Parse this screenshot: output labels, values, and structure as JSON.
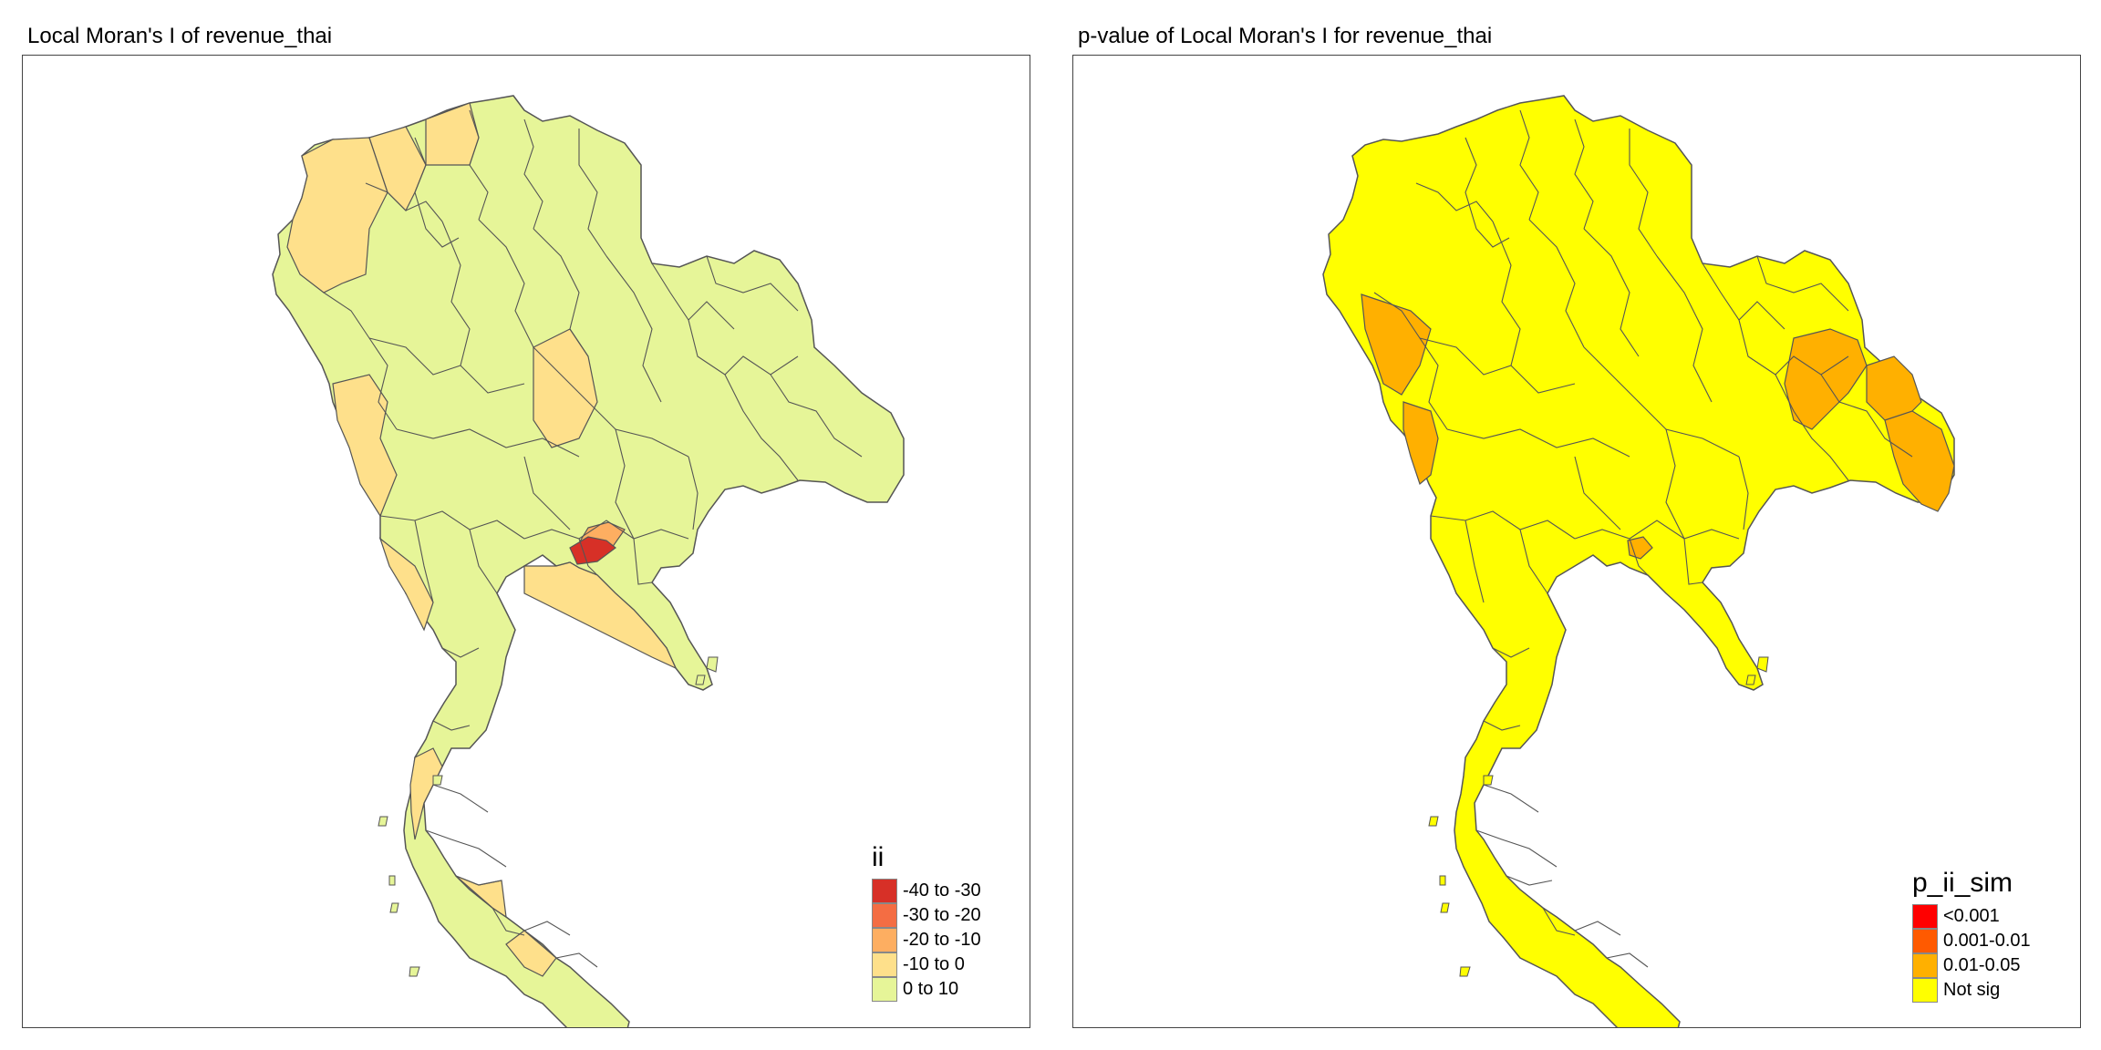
{
  "left_panel": {
    "title": "Local Moran's I of revenue_thai",
    "legend": {
      "title": "ii",
      "items": [
        {
          "label": "-40 to -30",
          "color": "#d73027"
        },
        {
          "label": "-30 to -20",
          "color": "#f46d43"
        },
        {
          "label": "-20 to -10",
          "color": "#fdae61"
        },
        {
          "label": "-10 to 0",
          "color": "#fee08b"
        },
        {
          "label": "0 to 10",
          "color": "#e6f598"
        }
      ]
    },
    "base_color": "#e6f598",
    "highlight_colors": {
      "strong_negative": "#d73027",
      "moderate_negative": "#fdae61",
      "weak_negative": "#fee08b"
    }
  },
  "right_panel": {
    "title": "p-value of Local Moran's I for revenue_thai",
    "legend": {
      "title": "p_ii_sim",
      "items": [
        {
          "label": "<0.001",
          "color": "#ff0000"
        },
        {
          "label": "0.001-0.01",
          "color": "#ff5a00"
        },
        {
          "label": "0.01-0.05",
          "color": "#ffb000"
        },
        {
          "label": "Not sig",
          "color": "#ffff00"
        }
      ]
    },
    "base_color": "#ffff00",
    "highlight_color": "#ffb000"
  }
}
